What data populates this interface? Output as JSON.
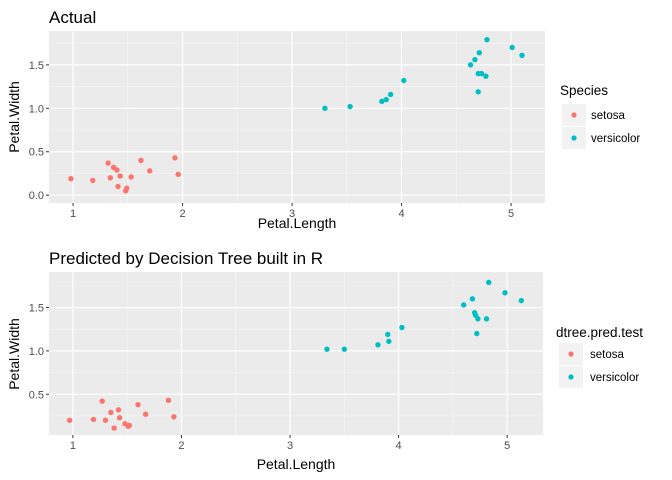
{
  "chart_data": [
    {
      "type": "scatter",
      "title": "Actual",
      "xlabel": "Petal.Length",
      "ylabel": "Petal.Width",
      "xlim": [
        0.78,
        5.31
      ],
      "ylim": [
        -0.09,
        1.89
      ],
      "xticks": [
        1,
        2,
        3,
        4,
        5
      ],
      "yticks": [
        0.0,
        0.5,
        1.0,
        1.5
      ],
      "ytick_labels": [
        "0.0",
        "0.5",
        "1.0",
        "1.5"
      ],
      "grid": true,
      "legend": {
        "title": "Species",
        "placement": "right"
      },
      "series": [
        {
          "name": "setosa",
          "color": "#F8766D",
          "points": [
            [
              0.98,
              0.19
            ],
            [
              1.18,
              0.17
            ],
            [
              1.32,
              0.37
            ],
            [
              1.34,
              0.2
            ],
            [
              1.37,
              0.32
            ],
            [
              1.4,
              0.29
            ],
            [
              1.41,
              0.1
            ],
            [
              1.43,
              0.22
            ],
            [
              1.48,
              0.05
            ],
            [
              1.49,
              0.08
            ],
            [
              1.53,
              0.21
            ],
            [
              1.62,
              0.4
            ],
            [
              1.7,
              0.28
            ],
            [
              1.93,
              0.43
            ],
            [
              1.96,
              0.24
            ]
          ]
        },
        {
          "name": "versicolor",
          "color": "#00BFC4",
          "points": [
            [
              3.3,
              1.0
            ],
            [
              3.53,
              1.02
            ],
            [
              3.82,
              1.08
            ],
            [
              3.86,
              1.1
            ],
            [
              3.9,
              1.16
            ],
            [
              4.02,
              1.32
            ],
            [
              4.63,
              1.5
            ],
            [
              4.67,
              1.56
            ],
            [
              4.7,
              1.4
            ],
            [
              4.7,
              1.19
            ],
            [
              4.71,
              1.64
            ],
            [
              4.73,
              1.4
            ],
            [
              4.77,
              1.37
            ],
            [
              4.78,
              1.79
            ],
            [
              5.01,
              1.7
            ],
            [
              5.1,
              1.61
            ]
          ]
        }
      ]
    },
    {
      "type": "scatter",
      "title": "Predicted by Decision Tree built in R",
      "xlabel": "Petal.Length",
      "ylabel": "Petal.Width",
      "xlim": [
        0.78,
        5.33
      ],
      "ylim": [
        0.03,
        1.91
      ],
      "xticks": [
        1,
        2,
        3,
        4,
        5
      ],
      "yticks": [
        0.5,
        1.0,
        1.5
      ],
      "ytick_labels": [
        "0.5",
        "1.0",
        "1.5"
      ],
      "grid": true,
      "legend": {
        "title": "dtree.pred.test",
        "placement": "right"
      },
      "series": [
        {
          "name": "setosa",
          "color": "#F8766D",
          "points": [
            [
              0.97,
              0.2
            ],
            [
              1.19,
              0.21
            ],
            [
              1.27,
              0.42
            ],
            [
              1.3,
              0.2
            ],
            [
              1.35,
              0.29
            ],
            [
              1.38,
              0.11
            ],
            [
              1.42,
              0.32
            ],
            [
              1.43,
              0.23
            ],
            [
              1.48,
              0.16
            ],
            [
              1.51,
              0.13
            ],
            [
              1.52,
              0.14
            ],
            [
              1.6,
              0.38
            ],
            [
              1.67,
              0.27
            ],
            [
              1.88,
              0.43
            ],
            [
              1.93,
              0.24
            ]
          ]
        },
        {
          "name": "versicolor",
          "color": "#00BFC4",
          "points": [
            [
              3.34,
              1.02
            ],
            [
              3.5,
              1.02
            ],
            [
              3.81,
              1.07
            ],
            [
              3.9,
              1.19
            ],
            [
              3.91,
              1.11
            ],
            [
              4.03,
              1.27
            ],
            [
              4.6,
              1.53
            ],
            [
              4.68,
              1.6
            ],
            [
              4.7,
              1.44
            ],
            [
              4.71,
              1.41
            ],
            [
              4.73,
              1.37
            ],
            [
              4.72,
              1.2
            ],
            [
              4.81,
              1.37
            ],
            [
              4.83,
              1.79
            ],
            [
              4.98,
              1.67
            ],
            [
              5.13,
              1.58
            ]
          ]
        }
      ]
    }
  ]
}
